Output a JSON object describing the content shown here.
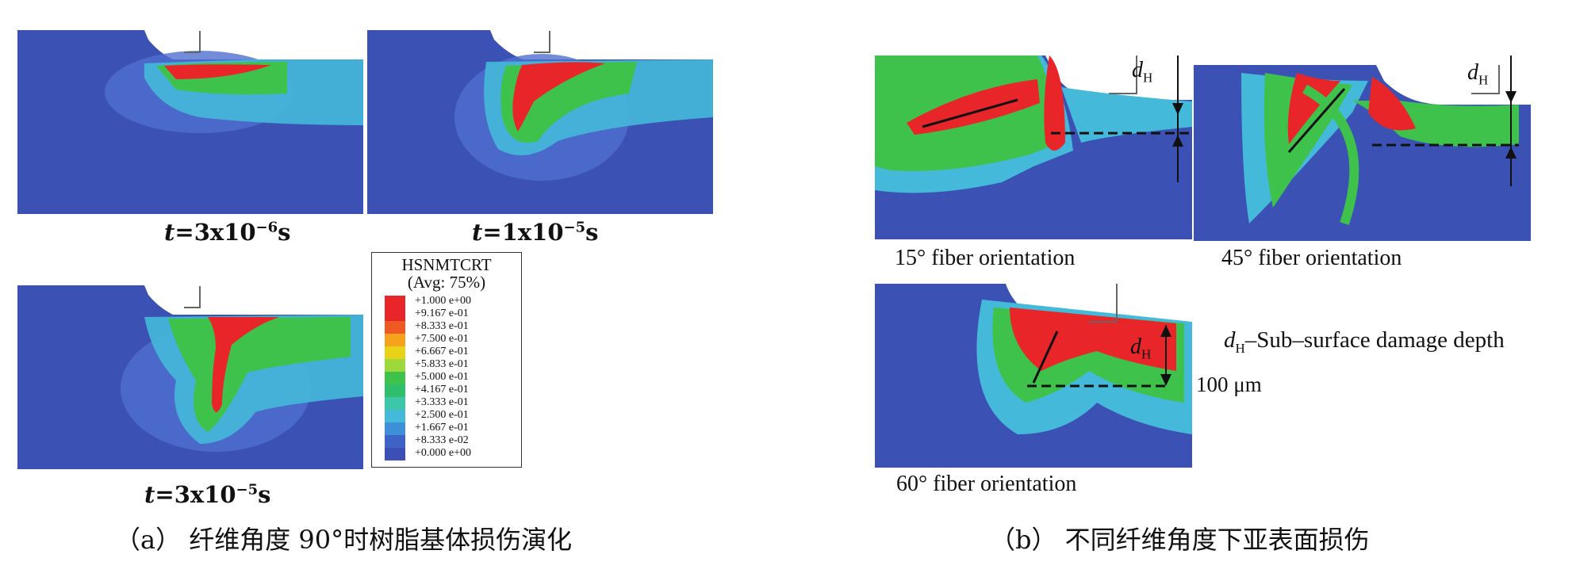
{
  "panel_a": {
    "times": [
      {
        "label": "t",
        "value": "=3x10",
        "exp": "−6",
        "unit": "s"
      },
      {
        "label": "t",
        "value": "=1x10",
        "exp": "−5",
        "unit": "s"
      },
      {
        "label": "t",
        "value": "=3x10",
        "exp": "−5",
        "unit": "s"
      }
    ],
    "legend": {
      "title_line1": "HSNMTCRT",
      "title_line2": "(Avg: 75%)",
      "entries": [
        {
          "value": "+1.000 e+00",
          "color": "#e8262a"
        },
        {
          "value": "+9.167 e-01",
          "color": "#e8262a"
        },
        {
          "value": "+8.333 e-01",
          "color": "#ef5a24"
        },
        {
          "value": "+7.500 e-01",
          "color": "#f6a21c"
        },
        {
          "value": "+6.667 e-01",
          "color": "#e9d318"
        },
        {
          "value": "+5.833 e-01",
          "color": "#9ed93b"
        },
        {
          "value": "+5.000 e-01",
          "color": "#3fc24b"
        },
        {
          "value": "+4.167 e-01",
          "color": "#2fbf6c"
        },
        {
          "value": "+3.333 e-01",
          "color": "#3cc8a8"
        },
        {
          "value": "+2.500 e-01",
          "color": "#45b9d9"
        },
        {
          "value": "+1.667 e-01",
          "color": "#3d8fd8"
        },
        {
          "value": "+8.333 e-02",
          "color": "#3e63c6"
        },
        {
          "value": "+0.000 e+00",
          "color": "#3c4fb6"
        }
      ]
    },
    "caption": "（a）  纤维角度 90°时树脂基体损伤演化"
  },
  "panel_b": {
    "orientations": [
      "15°  fiber orientation",
      "45°  fiber orientation",
      "60°  fiber orientation"
    ],
    "dh_symbol": "d",
    "dh_sub": "H",
    "note": "–Sub–surface damage depth",
    "scale_label": "100 μm",
    "caption": "（b）  不同纤维角度下亚表面损伤"
  },
  "colors": {
    "background_blue": "#3b52b4",
    "red": "#e8262a",
    "green": "#3fc24b",
    "cyan": "#45b9d9"
  }
}
